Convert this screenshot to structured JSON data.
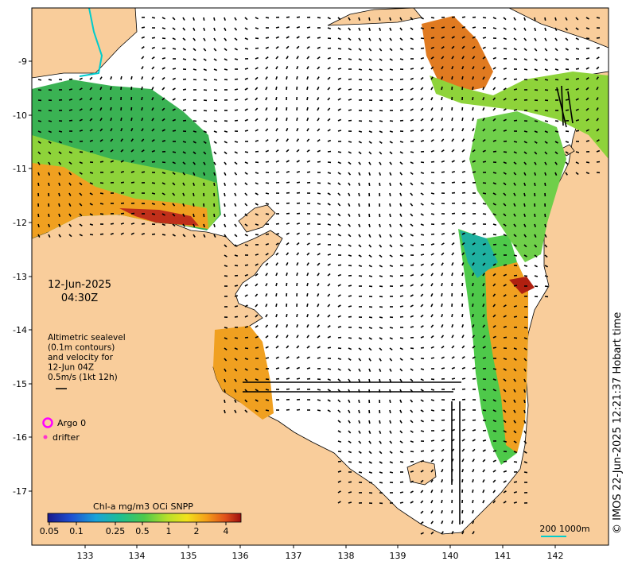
{
  "map": {
    "date_line1": "12-Jun-2025",
    "date_line2": "04:30Z",
    "legend_lines": [
      "Altimetric sealevel",
      "(0.1m contours)",
      "and velocity for",
      "12-Jun 04Z",
      "0.5m/s (1kt 12h)"
    ],
    "argo_label": "Argo 0",
    "drifter_label": "drifter",
    "colorbar_title": "Chl-a mg/m3 OCi SNPP",
    "colorbar_ticks": [
      "0.05",
      "0.1",
      "0.25",
      "0.5",
      "1",
      "2",
      "4"
    ],
    "scale_label": "200  1000m",
    "credit": "© IMOS 22-Jun-2025 12:21:37 Hobart time",
    "lat_ticks": [
      "-9",
      "-10",
      "-11",
      "-12",
      "-13",
      "-14",
      "-15",
      "-16",
      "-17"
    ],
    "lon_ticks": [
      "133",
      "134",
      "135",
      "136",
      "137",
      "138",
      "139",
      "140",
      "141",
      "142"
    ],
    "colors": {
      "land": "#f9cd9b",
      "ocean": "#ffffff",
      "argo": "#ff00ff",
      "drifter": "#ff33cc",
      "coastline": "#000000",
      "isobath": "#00cccc"
    }
  }
}
